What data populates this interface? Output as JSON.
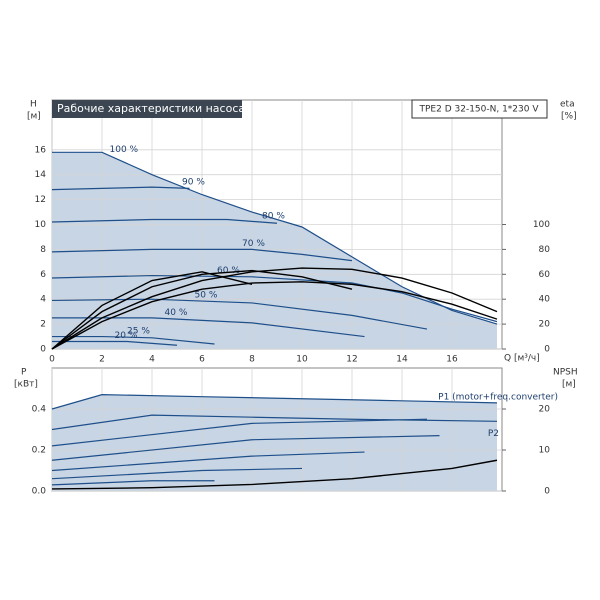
{
  "chart_data": [
    {
      "type": "line",
      "title": "Рабочие характеристики насоса",
      "subtitle": "TPE2 D 32-150-N, 1*230 V",
      "ylabel": "H",
      "ylabel_unit": "[м]",
      "y2label": "eta",
      "y2label_unit": "[%]",
      "xlabel": "Q [м³/ч]",
      "xlim": [
        0,
        18
      ],
      "xticks": [
        0,
        2,
        4,
        6,
        8,
        10,
        12,
        14,
        16
      ],
      "show_xtick_labels": true,
      "ylim": [
        0,
        20
      ],
      "yticks": [
        0,
        2,
        4,
        6,
        8,
        10,
        12,
        14,
        16
      ],
      "y2lim": [
        0,
        200
      ],
      "y2ticks": [
        0,
        20,
        40,
        60,
        80,
        100
      ],
      "grid": true,
      "series": [
        {
          "name": "100 %",
          "color": "#1e4f8a",
          "area": true,
          "x": [
            0,
            2,
            4,
            6,
            8,
            10,
            12,
            14,
            16,
            17.8
          ],
          "values": [
            15.8,
            15.8,
            14,
            12.4,
            11,
            9.8,
            7.4,
            5,
            3.1,
            2
          ]
        },
        {
          "name": "90 %",
          "color": "#1e4f8a",
          "x": [
            0,
            2,
            4,
            5.5
          ],
          "values": [
            12.8,
            12.9,
            13,
            12.9
          ]
        },
        {
          "name": "80 %",
          "color": "#1e4f8a",
          "x": [
            0,
            4,
            7,
            9
          ],
          "values": [
            10.2,
            10.4,
            10.4,
            10.1
          ]
        },
        {
          "name": "70 %",
          "color": "#1e4f8a",
          "x": [
            0,
            4,
            8,
            10,
            12
          ],
          "values": [
            7.8,
            8,
            8,
            7.6,
            7.1
          ]
        },
        {
          "name": "60 %",
          "color": "#1e4f8a",
          "x": [
            0,
            4,
            8,
            12,
            14,
            16,
            17.8
          ],
          "values": [
            5.7,
            5.9,
            5.8,
            5.3,
            4.5,
            3.2,
            2.2
          ]
        },
        {
          "name": "50 %",
          "color": "#1e4f8a",
          "x": [
            0,
            4,
            8,
            12,
            15
          ],
          "values": [
            3.9,
            4,
            3.7,
            2.7,
            1.6
          ]
        },
        {
          "name": "40 %",
          "color": "#1e4f8a",
          "x": [
            0,
            4,
            8,
            12.5
          ],
          "values": [
            2.5,
            2.5,
            2.1,
            1
          ]
        },
        {
          "name": "25 %",
          "color": "#1e4f8a",
          "x": [
            0,
            2,
            4,
            6.5
          ],
          "values": [
            1,
            1,
            0.9,
            0.4
          ]
        },
        {
          "name": "20 %",
          "color": "#1e4f8a",
          "x": [
            0,
            3,
            5
          ],
          "values": [
            0.6,
            0.6,
            0.3
          ]
        },
        {
          "color": "#000000",
          "axis": "y2",
          "x": [
            0,
            2,
            4,
            6,
            8,
            10,
            12,
            14,
            16,
            17.8
          ],
          "values": [
            0,
            25,
            42,
            55,
            62,
            65,
            64,
            57,
            45,
            30
          ]
        },
        {
          "color": "#000000",
          "axis": "y2",
          "x": [
            0,
            2,
            4,
            6,
            8,
            10,
            12,
            14,
            16,
            17.8
          ],
          "values": [
            0,
            22,
            38,
            48,
            53,
            54,
            52,
            46,
            36,
            24
          ]
        },
        {
          "color": "#000000",
          "axis": "y2",
          "x": [
            0,
            2,
            4,
            6,
            8,
            10,
            12
          ],
          "values": [
            0,
            30,
            50,
            60,
            63,
            58,
            48
          ]
        },
        {
          "color": "#000000",
          "axis": "y2",
          "x": [
            0,
            2,
            4,
            6,
            8
          ],
          "values": [
            0,
            35,
            55,
            62,
            52
          ]
        }
      ]
    },
    {
      "type": "line",
      "ylabel": "P",
      "ylabel_unit": "[кВт]",
      "y2label": "NPSH",
      "y2label_unit": "[м]",
      "xlim": [
        0,
        18
      ],
      "xticks": [
        0,
        2,
        4,
        6,
        8,
        10,
        12,
        14,
        16
      ],
      "show_xtick_labels": false,
      "ylim": [
        0,
        0.6
      ],
      "yticks": [
        {
          "value": 0,
          "label": "0.0"
        },
        0.2,
        0.4
      ],
      "y2lim": [
        0,
        30
      ],
      "y2ticks": [
        0,
        10,
        20
      ],
      "grid": true,
      "series": [
        {
          "name": "P1 (motor+freq.converter)",
          "color": "#1e4f8a",
          "area": true,
          "x": [
            0,
            2,
            6,
            10,
            14,
            17.8
          ],
          "values": [
            0.4,
            0.47,
            0.46,
            0.45,
            0.44,
            0.43
          ]
        },
        {
          "name": "P2",
          "color": "#1e4f8a",
          "x": [
            0,
            4,
            8,
            12,
            17.8
          ],
          "values": [
            0.3,
            0.37,
            0.36,
            0.35,
            0.34
          ]
        },
        {
          "color": "#1e4f8a",
          "x": [
            0,
            8,
            15
          ],
          "values": [
            0.22,
            0.33,
            0.35
          ]
        },
        {
          "color": "#1e4f8a",
          "x": [
            0,
            8,
            15.5
          ],
          "values": [
            0.15,
            0.25,
            0.27
          ]
        },
        {
          "color": "#1e4f8a",
          "x": [
            0,
            8,
            12.5
          ],
          "values": [
            0.1,
            0.17,
            0.19
          ]
        },
        {
          "color": "#1e4f8a",
          "x": [
            0,
            6,
            10
          ],
          "values": [
            0.06,
            0.1,
            0.11
          ]
        },
        {
          "color": "#1e4f8a",
          "x": [
            0,
            4,
            6.5
          ],
          "values": [
            0.03,
            0.05,
            0.05
          ]
        },
        {
          "color": "#000000",
          "axis": "y2",
          "x": [
            0,
            4,
            8,
            12,
            16,
            17.8
          ],
          "values": [
            0.5,
            0.8,
            1.6,
            3,
            5.5,
            7.5
          ]
        }
      ]
    }
  ]
}
